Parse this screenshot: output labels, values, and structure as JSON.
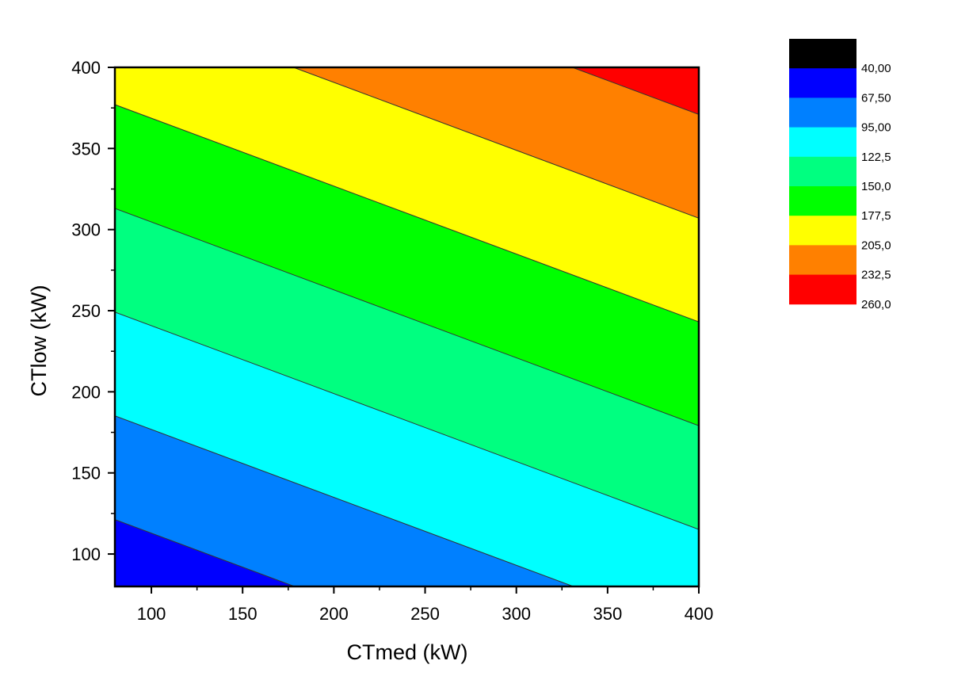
{
  "chart_data": {
    "type": "contour",
    "xlabel": "CTmed (kW)",
    "ylabel": "CTlow (kW)",
    "xlim": [
      80,
      400
    ],
    "ylim": [
      80,
      400
    ],
    "x_ticks": [
      100,
      150,
      200,
      250,
      300,
      350,
      400
    ],
    "y_ticks": [
      100,
      150,
      200,
      250,
      300,
      350,
      400
    ],
    "x_minor_step": 25,
    "y_minor_step": 25,
    "surface": {
      "form": "z = a*x + b*y + c",
      "a": 0.18,
      "b": 0.43,
      "c": 0.98
    },
    "levels": [
      40.0,
      67.5,
      95.0,
      122.5,
      150.0,
      177.5,
      205.0,
      232.5,
      260.0
    ],
    "level_labels": [
      "40,00",
      "67,50",
      "95,00",
      "122,5",
      "150,0",
      "177,5",
      "205,0",
      "232,5",
      "260,0"
    ],
    "band_colors": [
      "#000000",
      "#0000ff",
      "#0080ff",
      "#00ffff",
      "#00ff80",
      "#00ff00",
      "#ffff00",
      "#ff8000",
      "#ff0000"
    ],
    "contour_line_color": "#333333",
    "legend_position": "top-right",
    "grid": false
  }
}
